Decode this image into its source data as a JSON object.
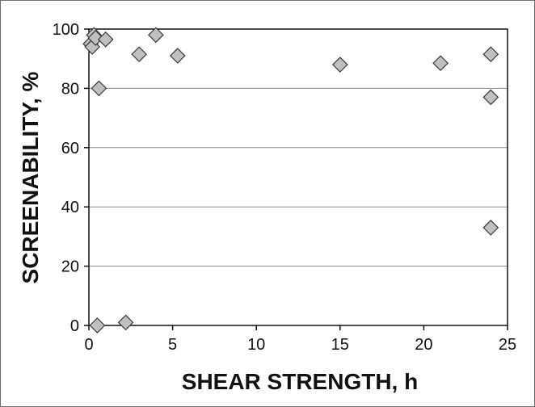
{
  "chart_data": {
    "type": "scatter",
    "title": "",
    "xlabel": "SHEAR STRENGTH, h",
    "ylabel": "SCREENABILITY, %",
    "xlim": [
      0,
      25
    ],
    "ylim": [
      0,
      100
    ],
    "xticks": [
      0,
      5,
      10,
      15,
      20,
      25
    ],
    "yticks": [
      0,
      20,
      40,
      60,
      80,
      100
    ],
    "grid": "horizontal",
    "legend": "none",
    "marker": "diamond",
    "marker_fill": "#c0c0c0",
    "marker_stroke": "#3a3a3a",
    "series": [
      {
        "x": [
          0.1,
          0.2,
          0.3,
          0.4,
          0.5,
          0.6,
          1.0,
          2.2,
          3.0,
          4.0,
          5.3,
          15.0,
          21.0,
          24.0,
          24.0,
          24.0
        ],
        "y": [
          95,
          94,
          98,
          97,
          0,
          80,
          96.5,
          1,
          91.5,
          98,
          91,
          88,
          88.5,
          91.5,
          77,
          33
        ]
      }
    ]
  }
}
